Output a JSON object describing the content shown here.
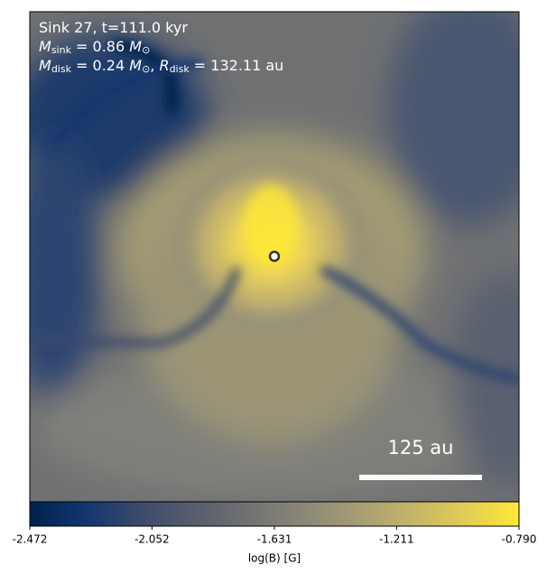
{
  "chart_data": {
    "type": "image",
    "annotations": [
      [
        {
          "t": "Sink 27, t=111.0 kyr"
        }
      ],
      [
        {
          "t": "M",
          "italic": true
        },
        {
          "t": "sink",
          "sub": true
        },
        {
          "t": " = 0.86 "
        },
        {
          "t": "M",
          "italic": true
        },
        {
          "t": "⊙",
          "sub": true
        }
      ],
      [
        {
          "t": "M",
          "italic": true
        },
        {
          "t": "disk",
          "sub": true
        },
        {
          "t": " = 0.24 "
        },
        {
          "t": "M",
          "italic": true
        },
        {
          "t": "⊙",
          "sub": true
        },
        {
          "t": ", "
        },
        {
          "t": "R",
          "italic": true
        },
        {
          "t": "disk",
          "sub": true
        },
        {
          "t": " = 132.11 au"
        }
      ]
    ],
    "scale_bar": "125 au",
    "colorbar": {
      "label": "log(B) [G]",
      "lim": [
        -2.472,
        -0.79
      ],
      "ticks": [
        -2.472,
        -2.052,
        -1.631,
        -1.211,
        {
          "value": -0.79,
          "label": "-0.790"
        }
      ],
      "colors": [
        "#00224e",
        "#123570",
        "#3b496c",
        "#575d6d",
        "#707173",
        "#8a8678",
        "#a59c74",
        "#c3b369",
        "#e1cc55",
        "#fee838"
      ]
    }
  }
}
